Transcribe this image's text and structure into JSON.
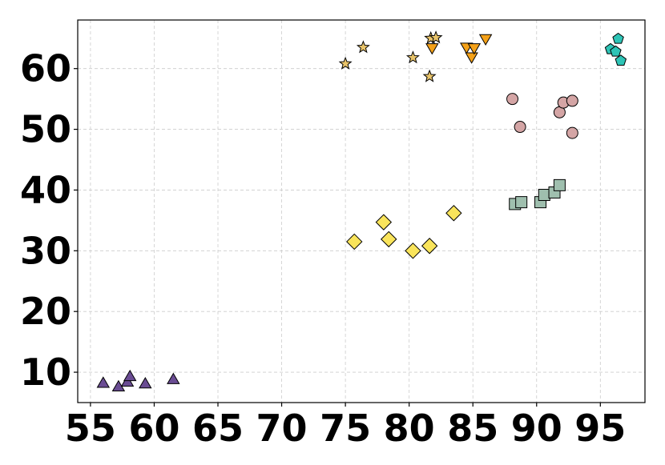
{
  "chart_data": {
    "type": "scatter",
    "title": "",
    "xlabel": "",
    "ylabel": "",
    "xlim": [
      54,
      98.5
    ],
    "ylim": [
      5,
      68
    ],
    "x_ticks": [
      55,
      60,
      65,
      70,
      75,
      80,
      85,
      90,
      95
    ],
    "y_ticks": [
      10,
      20,
      30,
      40,
      50,
      60
    ],
    "grid": true,
    "legend": "none",
    "series": [
      {
        "marker": "triangle-up",
        "color": "#6a4c93",
        "points": [
          [
            56.0,
            8.2
          ],
          [
            57.2,
            7.6
          ],
          [
            57.9,
            8.4
          ],
          [
            58.1,
            9.3
          ],
          [
            59.3,
            8.1
          ],
          [
            61.5,
            8.8
          ]
        ]
      },
      {
        "marker": "diamond",
        "color": "#f9e45b",
        "points": [
          [
            75.7,
            31.5
          ],
          [
            78.0,
            34.7
          ],
          [
            78.4,
            31.9
          ],
          [
            80.3,
            30.0
          ],
          [
            81.6,
            30.8
          ],
          [
            83.5,
            36.2
          ]
        ]
      },
      {
        "marker": "square",
        "color": "#9fbfae",
        "points": [
          [
            88.3,
            37.7
          ],
          [
            88.8,
            38.0
          ],
          [
            90.3,
            38.0
          ],
          [
            90.6,
            39.2
          ],
          [
            91.4,
            39.6
          ],
          [
            91.8,
            40.8
          ]
        ]
      },
      {
        "marker": "circle",
        "color": "#d4a5a5",
        "points": [
          [
            88.1,
            55.0
          ],
          [
            88.7,
            50.4
          ],
          [
            91.8,
            52.8
          ],
          [
            92.1,
            54.4
          ],
          [
            92.8,
            54.7
          ],
          [
            92.8,
            49.4
          ]
        ]
      },
      {
        "marker": "pentagon",
        "color": "#2ec4b6",
        "points": [
          [
            95.8,
            63.2
          ],
          [
            96.2,
            62.8
          ],
          [
            96.4,
            64.9
          ],
          [
            96.6,
            61.3
          ]
        ]
      },
      {
        "marker": "star",
        "color": "#e9c46a",
        "points": [
          [
            75.0,
            60.8
          ],
          [
            76.4,
            63.5
          ],
          [
            80.3,
            61.8
          ],
          [
            81.6,
            58.7
          ],
          [
            81.7,
            65.0
          ],
          [
            82.1,
            65.1
          ]
        ]
      },
      {
        "marker": "triangle-down",
        "color": "#f4a118",
        "points": [
          [
            81.8,
            63.4
          ],
          [
            84.5,
            63.5
          ],
          [
            84.9,
            61.9
          ],
          [
            85.1,
            63.4
          ],
          [
            86.0,
            64.9
          ]
        ]
      }
    ]
  }
}
